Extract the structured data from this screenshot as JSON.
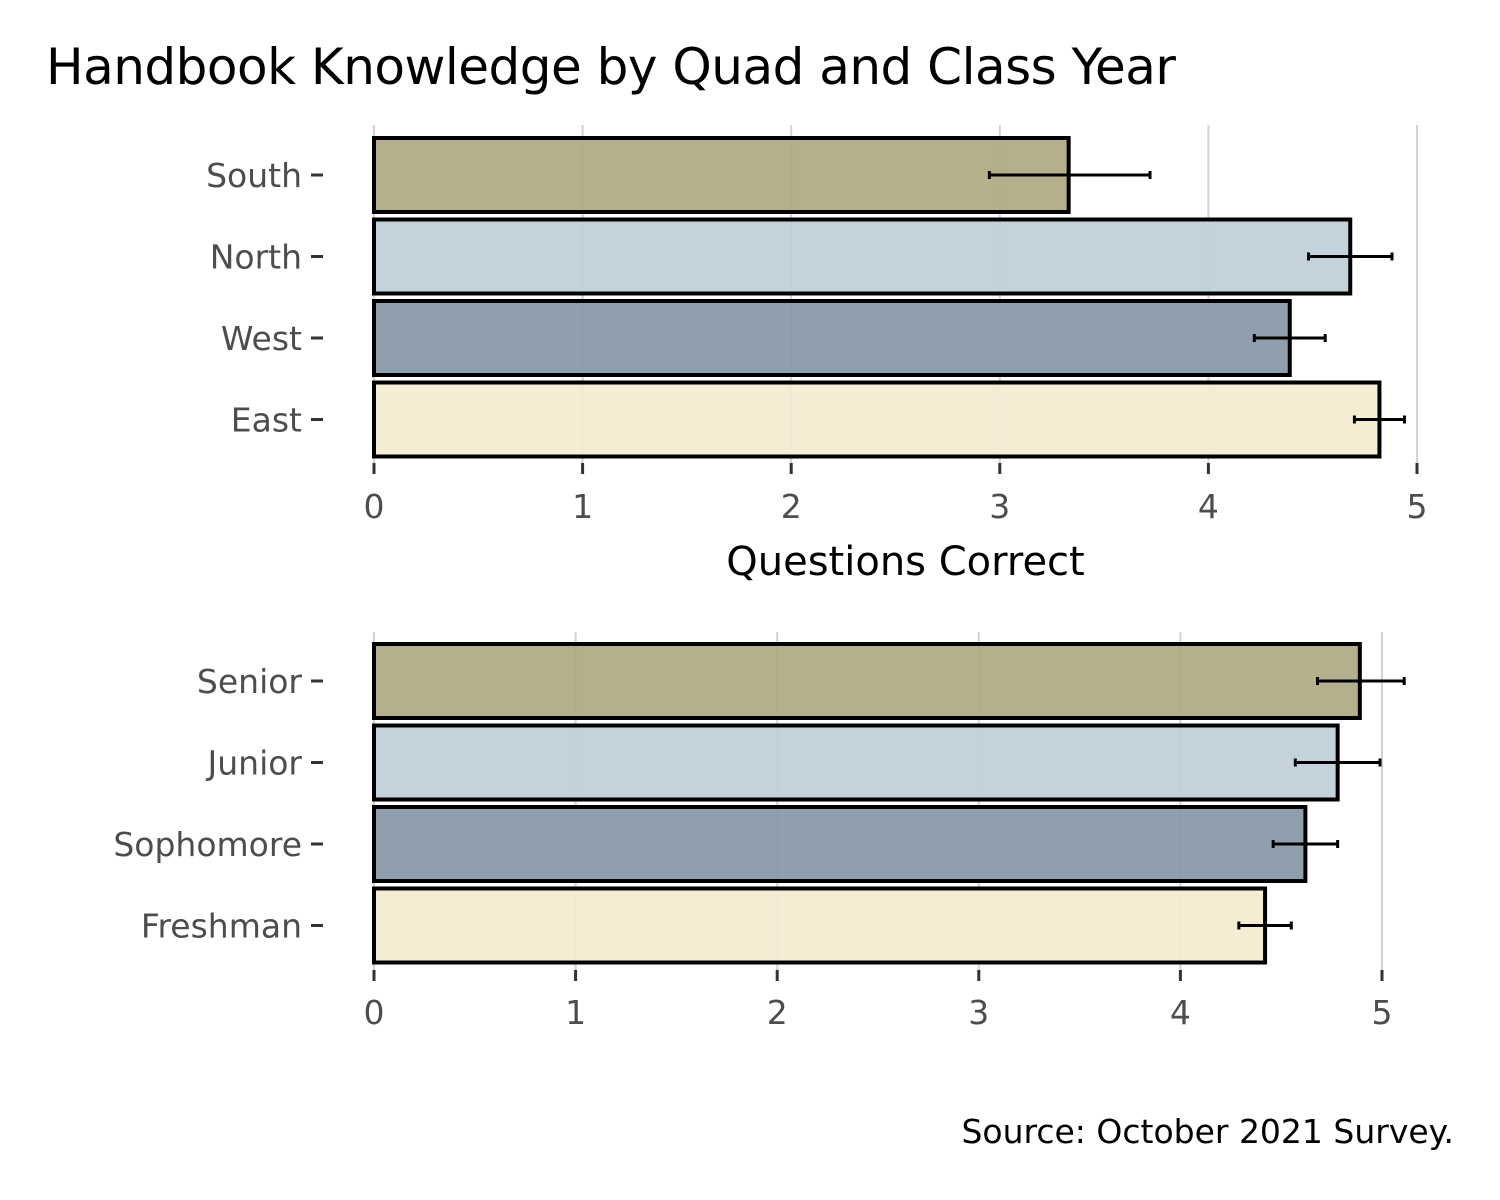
{
  "title": "Handbook Knowledge by Quad and Class Year",
  "caption": "Source: October 2021 Survey.",
  "colors": {
    "fills": [
      "#aca981",
      "#bfcfd8",
      "#8797a7",
      "#f4ead0"
    ],
    "outline": "#000000",
    "grid": "#d3d3d3",
    "tick_text": "#4d4d4d"
  },
  "chart_data": [
    {
      "type": "bar",
      "orientation": "horizontal",
      "categories": [
        "South",
        "North",
        "West",
        "East"
      ],
      "values": [
        3.33,
        4.68,
        4.39,
        4.82
      ],
      "error_low": [
        2.95,
        4.48,
        4.22,
        4.7
      ],
      "error_high": [
        3.72,
        4.88,
        4.56,
        4.94
      ],
      "xlabel": "Questions Correct",
      "ylabel": "",
      "xlim": [
        0,
        5
      ],
      "xticks": [
        "0",
        "1",
        "2",
        "3",
        "4",
        "5"
      ],
      "grid": "vertical"
    },
    {
      "type": "bar",
      "orientation": "horizontal",
      "categories": [
        "Senior",
        "Junior",
        "Sophomore",
        "Freshman"
      ],
      "values": [
        4.89,
        4.78,
        4.62,
        4.42
      ],
      "error_low": [
        4.68,
        4.57,
        4.46,
        4.29
      ],
      "error_high": [
        5.11,
        4.99,
        4.78,
        4.55
      ],
      "xlabel": "",
      "ylabel": "",
      "xlim": [
        0,
        5
      ],
      "xticks": [
        "0",
        "1",
        "2",
        "3",
        "4",
        "5"
      ],
      "grid": "vertical"
    }
  ]
}
